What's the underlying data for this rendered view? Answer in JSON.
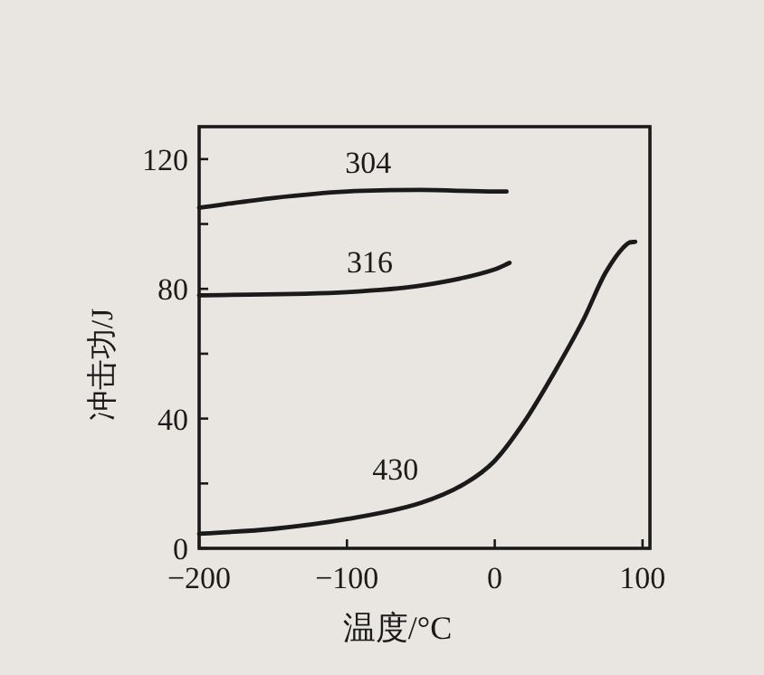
{
  "chart_data": {
    "type": "line",
    "xlabel": "温度/°C",
    "ylabel": "冲击功/J",
    "xlim": [
      -200,
      105
    ],
    "xticks": [
      -200,
      -100,
      0,
      100
    ],
    "ylim": [
      0,
      130
    ],
    "yticks": [
      0,
      {
        "value": 20,
        "label": null
      },
      40,
      {
        "value": 60,
        "label": null
      },
      80,
      {
        "value": 100,
        "label": null
      },
      120
    ],
    "grid": false,
    "marker": "none",
    "line_style": "solid",
    "series": [
      {
        "name": "304",
        "color": "#1a1a1a",
        "x": [
          -200,
          -150,
          -100,
          -50,
          0,
          8
        ],
        "values": [
          105,
          108,
          110,
          110.5,
          110,
          110
        ]
      },
      {
        "name": "316",
        "color": "#1a1a1a",
        "x": [
          -200,
          -100,
          -50,
          0,
          10
        ],
        "values": [
          78,
          79,
          81,
          86,
          88
        ]
      },
      {
        "name": "430",
        "color": "#1a1a1a",
        "x": [
          -200,
          -150,
          -100,
          -50,
          -20,
          0,
          20,
          40,
          60,
          75,
          90,
          95
        ],
        "values": [
          4.5,
          6,
          9,
          14,
          20,
          27,
          39,
          54,
          70.5,
          85,
          94,
          94.5
        ]
      }
    ]
  }
}
